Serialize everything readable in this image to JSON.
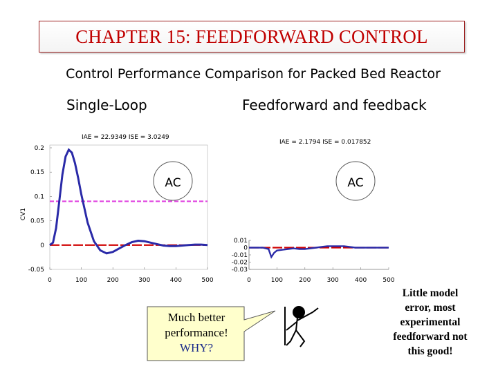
{
  "header": {
    "title": "CHAPTER 15: FEEDFORWARD CONTROL"
  },
  "subtitle": "Control Performance Comparison for Packed Bed Reactor",
  "labels": {
    "single_loop": "Single-Loop",
    "ff_fb": "Feedforward and feedback"
  },
  "callout": {
    "line1": "Much better",
    "line2": "performance!",
    "line3": "WHY?"
  },
  "side_note": {
    "line1": "Little model",
    "line2": "error, most",
    "line3": "experimental",
    "line4": "feedforward not",
    "line5": "this good!"
  },
  "chart_data": [
    {
      "type": "line",
      "title": "IAE = 22.9349 ISE = 3.0249",
      "ylabel": "CV1",
      "xlim": [
        0,
        500
      ],
      "ylim": [
        -0.05,
        0.2
      ],
      "xticks": [
        "0",
        "100",
        "200",
        "300",
        "400",
        "500"
      ],
      "yticks": [
        "0.2",
        "0.15",
        "0.1",
        "0.05",
        "0",
        "-0.05"
      ],
      "badge": "AC",
      "reference_lines": [
        {
          "y": 0,
          "color": "#d00000"
        },
        {
          "y": 0.09,
          "color": "#e040e0"
        }
      ],
      "series": [
        {
          "color": "#2a2aa8",
          "x": [
            0,
            10,
            20,
            30,
            40,
            50,
            60,
            70,
            80,
            90,
            100,
            120,
            140,
            160,
            180,
            200,
            220,
            240,
            260,
            280,
            300,
            320,
            340,
            360,
            380,
            400,
            420,
            440,
            460,
            480,
            500
          ],
          "y": [
            0,
            0.005,
            0.035,
            0.09,
            0.145,
            0.182,
            0.196,
            0.19,
            0.168,
            0.138,
            0.104,
            0.046,
            0.008,
            -0.011,
            -0.017,
            -0.014,
            -0.007,
            0.0,
            0.006,
            0.009,
            0.008,
            0.005,
            0.002,
            -0.001,
            -0.002,
            -0.002,
            -0.001,
            0.0,
            0.001,
            0.001,
            0.0
          ]
        }
      ]
    },
    {
      "type": "line",
      "title": "IAE = 2.1794 ISE = 0.017852",
      "xlim": [
        0,
        500
      ],
      "ylim": [
        -0.03,
        0.01
      ],
      "xticks": [
        "0",
        "100",
        "200",
        "300",
        "400",
        "500"
      ],
      "yticks": [
        "0.01",
        "0",
        "-0.01",
        "-0.02",
        "-0.03"
      ],
      "badge": "AC",
      "reference_lines": [
        {
          "y": 0,
          "color": "#d00000"
        }
      ],
      "series": [
        {
          "color": "#2a2aa8",
          "x": [
            0,
            50,
            70,
            80,
            90,
            100,
            120,
            140,
            160,
            180,
            200,
            220,
            240,
            260,
            280,
            300,
            320,
            340,
            360,
            380,
            400,
            420,
            440,
            460,
            480,
            500
          ],
          "y": [
            0,
            0,
            -0.002,
            -0.013,
            -0.007,
            -0.004,
            -0.003,
            -0.002,
            -0.001,
            -0.002,
            -0.002,
            -0.001,
            0.0,
            0.001,
            0.002,
            0.002,
            0.002,
            0.002,
            0.001,
            0.0,
            0.0,
            0.0,
            0.0,
            0.0,
            0.0,
            0.0
          ]
        }
      ]
    }
  ]
}
